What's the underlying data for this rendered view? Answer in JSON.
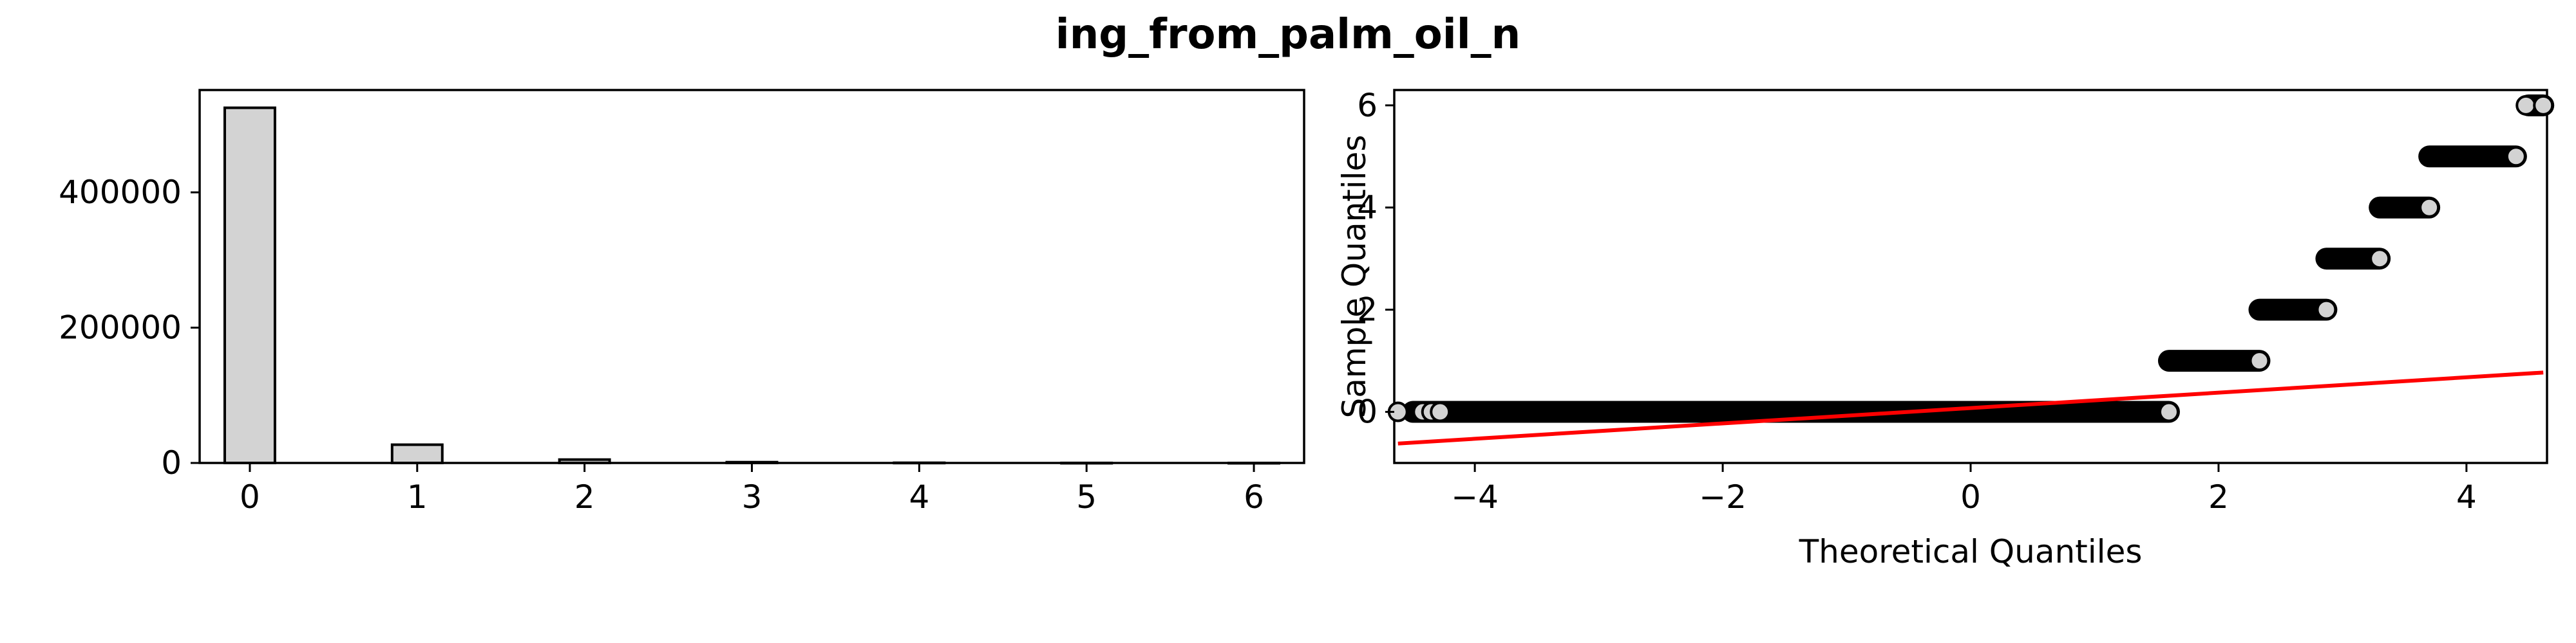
{
  "figure": {
    "title": "ing_from_palm_oil_n"
  },
  "chart_data": [
    {
      "type": "bar",
      "title": "",
      "xlabel": "",
      "ylabel": "",
      "bin_width": 0.3,
      "bins": [
        {
          "x": 0,
          "value": 525000
        },
        {
          "x": 1,
          "value": 27000
        },
        {
          "x": 2,
          "value": 5000
        },
        {
          "x": 3,
          "value": 1200
        },
        {
          "x": 4,
          "value": 300
        },
        {
          "x": 5,
          "value": 60
        },
        {
          "x": 6,
          "value": 5
        }
      ],
      "xlim": [
        -0.3,
        6.3
      ],
      "ylim": [
        0,
        551250
      ],
      "xticks": [
        0,
        1,
        2,
        3,
        4,
        5,
        6
      ],
      "yticks": [
        0,
        200000,
        400000
      ],
      "grid": false,
      "colors": {
        "fill": "#d3d3d3",
        "edge": "#000000"
      }
    },
    {
      "type": "scatter",
      "title": "",
      "xlabel": "Theoretical Quantiles",
      "ylabel": "Sample Quantiles",
      "xlim": [
        -4.65,
        4.65
      ],
      "ylim": [
        -1,
        6.3
      ],
      "xticks": [
        -4,
        -2,
        0,
        2,
        4
      ],
      "yticks": [
        0,
        2,
        4,
        6
      ],
      "grid": false,
      "quantile_bands": [
        {
          "y": 0,
          "x_start": -4.5,
          "x_end": 1.6
        },
        {
          "y": 1,
          "x_start": 1.6,
          "x_end": 2.33
        },
        {
          "y": 2,
          "x_start": 2.33,
          "x_end": 2.87
        },
        {
          "y": 3,
          "x_start": 2.87,
          "x_end": 3.3
        },
        {
          "y": 4,
          "x_start": 3.3,
          "x_end": 3.7
        },
        {
          "y": 5,
          "x_start": 3.7,
          "x_end": 4.4
        },
        {
          "y": 6,
          "x_start": 4.5,
          "x_end": 4.62
        }
      ],
      "outlier_points": [
        {
          "x": -4.62,
          "y": 0
        },
        {
          "x": -4.42,
          "y": 0
        },
        {
          "x": -4.35,
          "y": 0
        },
        {
          "x": -4.28,
          "y": 0
        },
        {
          "x": 4.48,
          "y": 6
        },
        {
          "x": 4.62,
          "y": 6
        }
      ],
      "reference_line": {
        "x": [
          -4.62,
          4.62
        ],
        "y": [
          -0.62,
          0.77
        ]
      },
      "colors": {
        "marker_fill": "#d3d3d3",
        "marker_edge": "#000000",
        "line": "#ff0000"
      }
    }
  ]
}
